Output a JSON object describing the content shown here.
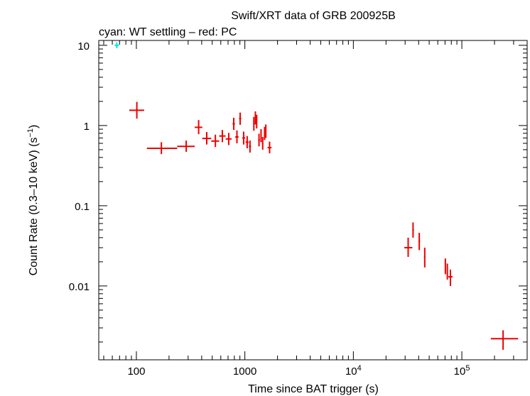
{
  "chart_data": {
    "type": "scatter",
    "title": "Swift/XRT data of GRB 200925B",
    "subtitle": "cyan: WT settling – red: PC",
    "xlabel": "Time since BAT trigger (s)",
    "ylabel_main": "Count Rate (0.3–10 keV) (s",
    "ylabel_sup": "−1",
    "ylabel_close": ")",
    "xscale": "log",
    "yscale": "log",
    "xlim": [
      45,
      400000
    ],
    "ylim": [
      0.0012,
      11.5
    ],
    "x_ticks": [
      {
        "value": 100,
        "base": "100",
        "sup": ""
      },
      {
        "value": 1000,
        "base": "1000",
        "sup": ""
      },
      {
        "value": 10000,
        "base": "10",
        "sup": "4"
      },
      {
        "value": 100000,
        "base": "10",
        "sup": "5"
      }
    ],
    "y_ticks": [
      {
        "value": 10,
        "label": "10"
      },
      {
        "value": 1,
        "label": "1"
      },
      {
        "value": 0.1,
        "label": "0.1"
      },
      {
        "value": 0.01,
        "label": "0.01"
      }
    ],
    "grid": false,
    "legend": "none",
    "series": [
      {
        "name": "WT settling",
        "color": "#00e5ee",
        "points": [
          {
            "x": 66,
            "xlo": 63,
            "xhi": 69,
            "y": 10.0,
            "ylo": 9.2,
            "yhi": 10.9
          }
        ]
      },
      {
        "name": "PC",
        "color": "#ee0000",
        "points": [
          {
            "x": 101,
            "xlo": 86,
            "xhi": 118,
            "y": 1.55,
            "ylo": 1.22,
            "yhi": 1.97
          },
          {
            "x": 170,
            "xlo": 125,
            "xhi": 238,
            "y": 0.52,
            "ylo": 0.44,
            "yhi": 0.62
          },
          {
            "x": 288,
            "xlo": 238,
            "xhi": 345,
            "y": 0.55,
            "ylo": 0.47,
            "yhi": 0.65
          },
          {
            "x": 375,
            "xlo": 345,
            "xhi": 405,
            "y": 0.95,
            "ylo": 0.78,
            "yhi": 1.17
          },
          {
            "x": 445,
            "xlo": 405,
            "xhi": 490,
            "y": 0.69,
            "ylo": 0.58,
            "yhi": 0.83
          },
          {
            "x": 535,
            "xlo": 490,
            "xhi": 580,
            "y": 0.64,
            "ylo": 0.54,
            "yhi": 0.77
          },
          {
            "x": 620,
            "xlo": 580,
            "xhi": 665,
            "y": 0.74,
            "ylo": 0.62,
            "yhi": 0.88
          },
          {
            "x": 710,
            "xlo": 665,
            "xhi": 755,
            "y": 0.68,
            "ylo": 0.57,
            "yhi": 0.81
          },
          {
            "x": 790,
            "xlo": 770,
            "xhi": 810,
            "y": 1.05,
            "ylo": 0.88,
            "yhi": 1.25
          },
          {
            "x": 845,
            "xlo": 815,
            "xhi": 875,
            "y": 0.72,
            "ylo": 0.6,
            "yhi": 0.87
          },
          {
            "x": 905,
            "xlo": 885,
            "xhi": 925,
            "y": 1.22,
            "ylo": 1.02,
            "yhi": 1.45
          },
          {
            "x": 975,
            "xlo": 945,
            "xhi": 1005,
            "y": 0.7,
            "ylo": 0.58,
            "yhi": 0.84
          },
          {
            "x": 1050,
            "xlo": 1015,
            "xhi": 1085,
            "y": 0.62,
            "ylo": 0.52,
            "yhi": 0.74
          },
          {
            "x": 1115,
            "xlo": 1090,
            "xhi": 1140,
            "y": 0.55,
            "ylo": 0.46,
            "yhi": 0.65
          },
          {
            "x": 1210,
            "xlo": 1195,
            "xhi": 1225,
            "y": 1.05,
            "ylo": 0.86,
            "yhi": 1.28
          },
          {
            "x": 1250,
            "xlo": 1238,
            "xhi": 1262,
            "y": 1.25,
            "ylo": 1.03,
            "yhi": 1.5
          },
          {
            "x": 1285,
            "xlo": 1272,
            "xhi": 1298,
            "y": 1.12,
            "ylo": 0.92,
            "yhi": 1.36
          },
          {
            "x": 1350,
            "xlo": 1325,
            "xhi": 1375,
            "y": 0.66,
            "ylo": 0.55,
            "yhi": 0.79
          },
          {
            "x": 1410,
            "xlo": 1390,
            "xhi": 1430,
            "y": 0.75,
            "ylo": 0.62,
            "yhi": 0.9
          },
          {
            "x": 1460,
            "xlo": 1440,
            "xhi": 1480,
            "y": 0.6,
            "ylo": 0.5,
            "yhi": 0.72
          },
          {
            "x": 1520,
            "xlo": 1500,
            "xhi": 1540,
            "y": 0.8,
            "ylo": 0.66,
            "yhi": 0.96
          },
          {
            "x": 1560,
            "xlo": 1545,
            "xhi": 1575,
            "y": 0.85,
            "ylo": 0.7,
            "yhi": 1.03
          },
          {
            "x": 1690,
            "xlo": 1620,
            "xhi": 1760,
            "y": 0.53,
            "ylo": 0.45,
            "yhi": 0.63
          },
          {
            "x": 32000,
            "xlo": 29500,
            "xhi": 35000,
            "y": 0.03,
            "ylo": 0.023,
            "yhi": 0.04
          },
          {
            "x": 35500,
            "xlo": 35000,
            "xhi": 36200,
            "y": 0.05,
            "ylo": 0.04,
            "yhi": 0.062
          },
          {
            "x": 40500,
            "xlo": 39800,
            "xhi": 41200,
            "y": 0.036,
            "ylo": 0.028,
            "yhi": 0.046
          },
          {
            "x": 45500,
            "xlo": 44800,
            "xhi": 46200,
            "y": 0.023,
            "ylo": 0.017,
            "yhi": 0.03
          },
          {
            "x": 70500,
            "xlo": 69800,
            "xhi": 71200,
            "y": 0.018,
            "ylo": 0.014,
            "yhi": 0.022
          },
          {
            "x": 73500,
            "xlo": 72700,
            "xhi": 74300,
            "y": 0.015,
            "ylo": 0.012,
            "yhi": 0.019
          },
          {
            "x": 78500,
            "xlo": 75000,
            "xhi": 82000,
            "y": 0.013,
            "ylo": 0.01,
            "yhi": 0.016
          },
          {
            "x": 240000,
            "xlo": 185000,
            "xhi": 330000,
            "y": 0.0022,
            "ylo": 0.0016,
            "yhi": 0.0028
          }
        ]
      }
    ]
  }
}
